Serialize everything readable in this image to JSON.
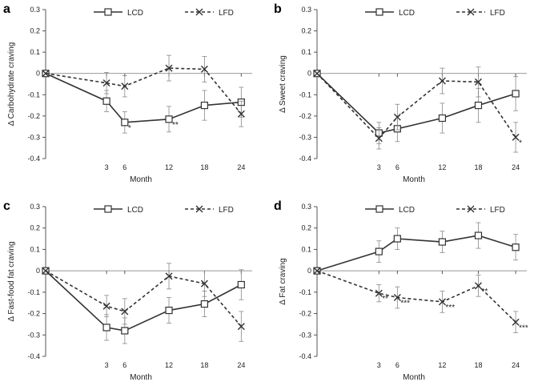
{
  "colors": {
    "line": "#333333",
    "axis": "#555555",
    "zero": "#777777"
  },
  "chart_data": [
    {
      "type": "line",
      "panel_label": "a",
      "ylabel": "Δ Carbohydrate craving",
      "xlabel": "Month",
      "x": [
        0,
        3,
        6,
        12,
        18,
        24
      ],
      "x_tick_labels": [
        "",
        "3",
        "6",
        "12",
        "18",
        "24"
      ],
      "ylim": [
        -0.4,
        0.3
      ],
      "y_ticks": [
        "0.3",
        "0.2",
        "0.1",
        "0",
        "-0.1",
        "-0.2",
        "-0.3",
        "-0.4"
      ],
      "legend": [
        "LCD",
        "LFD"
      ],
      "series": [
        {
          "name": "LCD",
          "marker": "square",
          "values": [
            0,
            -0.13,
            -0.23,
            -0.215,
            -0.15,
            -0.135
          ],
          "err": [
            0,
            0.05,
            0.05,
            0.06,
            0.07,
            0.07
          ],
          "annotations": [
            "",
            "",
            "*",
            "**",
            "",
            ""
          ]
        },
        {
          "name": "LFD",
          "marker": "x",
          "values": [
            0,
            -0.045,
            -0.06,
            0.025,
            0.02,
            -0.19
          ],
          "err": [
            0,
            0.05,
            0.05,
            0.06,
            0.06,
            0.06
          ],
          "annotations": [
            "",
            "",
            "",
            "",
            "",
            ""
          ]
        }
      ]
    },
    {
      "type": "line",
      "panel_label": "b",
      "ylabel": "Δ Sweet craving",
      "xlabel": "Month",
      "x": [
        0,
        3,
        6,
        12,
        18,
        24
      ],
      "x_tick_labels": [
        "",
        "3",
        "6",
        "12",
        "18",
        "24"
      ],
      "ylim": [
        -0.4,
        0.3
      ],
      "y_ticks": [
        "0.3",
        "0.2",
        "0.1",
        "0",
        "-0.1",
        "-0.2",
        "-0.3",
        "-0.4"
      ],
      "legend": [
        "LCD",
        "LFD"
      ],
      "series": [
        {
          "name": "LCD",
          "marker": "square",
          "values": [
            0,
            -0.28,
            -0.26,
            -0.21,
            -0.15,
            -0.095
          ],
          "err": [
            0,
            0.05,
            0.06,
            0.07,
            0.08,
            0.08
          ],
          "annotations": [
            "",
            "",
            "",
            "",
            "",
            ""
          ]
        },
        {
          "name": "LFD",
          "marker": "x",
          "values": [
            0,
            -0.305,
            -0.205,
            -0.035,
            -0.04,
            -0.3
          ],
          "err": [
            0,
            0.05,
            0.06,
            0.06,
            0.07,
            0.07
          ],
          "annotations": [
            "",
            "",
            "",
            "",
            "",
            "*"
          ]
        }
      ]
    },
    {
      "type": "line",
      "panel_label": "c",
      "ylabel": "Δ Fast-food fat craving",
      "xlabel": "Month",
      "x": [
        0,
        3,
        6,
        12,
        18,
        24
      ],
      "x_tick_labels": [
        "",
        "3",
        "6",
        "12",
        "18",
        "24"
      ],
      "ylim": [
        -0.4,
        0.3
      ],
      "y_ticks": [
        "0.3",
        "0.2",
        "0.1",
        "0",
        "-0.1",
        "-0.2",
        "-0.3",
        "-0.4"
      ],
      "legend": [
        "LCD",
        "LFD"
      ],
      "series": [
        {
          "name": "LCD",
          "marker": "square",
          "values": [
            0,
            -0.265,
            -0.28,
            -0.185,
            -0.155,
            -0.065
          ],
          "err": [
            0,
            0.06,
            0.06,
            0.06,
            0.06,
            0.07
          ],
          "annotations": [
            "",
            "",
            "",
            "",
            "",
            ""
          ]
        },
        {
          "name": "LFD",
          "marker": "x",
          "values": [
            0,
            -0.165,
            -0.19,
            -0.025,
            -0.06,
            -0.26
          ],
          "err": [
            0,
            0.05,
            0.06,
            0.06,
            0.06,
            0.07
          ],
          "annotations": [
            "",
            "",
            "",
            "",
            "",
            ""
          ]
        }
      ]
    },
    {
      "type": "line",
      "panel_label": "d",
      "ylabel": "Δ Fat craving",
      "xlabel": "Month",
      "x": [
        0,
        3,
        6,
        12,
        18,
        24
      ],
      "x_tick_labels": [
        "",
        "3",
        "6",
        "12",
        "18",
        "24"
      ],
      "ylim": [
        -0.4,
        0.3
      ],
      "y_ticks": [
        "0.3",
        "0.2",
        "0.1",
        "0",
        "-0.1",
        "-0.2",
        "-0.3",
        "-0.4"
      ],
      "legend": [
        "LCD",
        "LFD"
      ],
      "series": [
        {
          "name": "LCD",
          "marker": "square",
          "values": [
            0,
            0.09,
            0.15,
            0.135,
            0.165,
            0.11
          ],
          "err": [
            0,
            0.05,
            0.05,
            0.05,
            0.06,
            0.06
          ],
          "annotations": [
            "",
            "",
            "",
            "",
            "",
            ""
          ]
        },
        {
          "name": "LFD",
          "marker": "x",
          "values": [
            0,
            -0.105,
            -0.125,
            -0.145,
            -0.07,
            -0.24
          ],
          "err": [
            0,
            0.04,
            0.05,
            0.05,
            0.05,
            0.05
          ],
          "annotations": [
            "",
            "**",
            "***",
            "***",
            "**",
            "***"
          ]
        }
      ]
    }
  ]
}
